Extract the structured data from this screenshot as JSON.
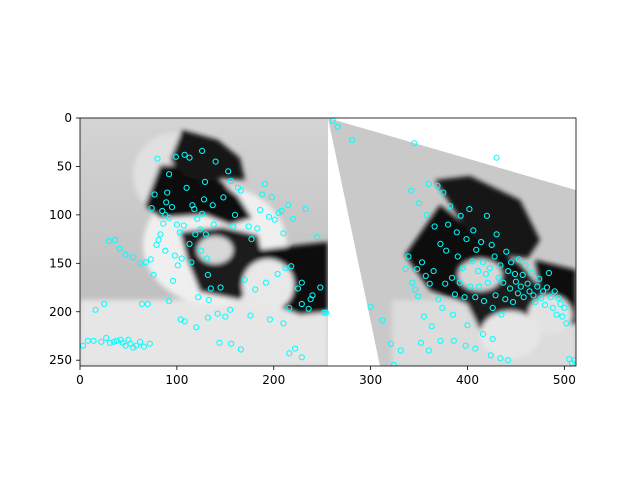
{
  "chart_data": {
    "type": "scatter",
    "title": "",
    "xlabel": "",
    "ylabel": "",
    "xlim": [
      0,
      512
    ],
    "ylim": [
      256,
      0
    ],
    "x_ticks": [
      0,
      100,
      200,
      300,
      400,
      500
    ],
    "y_ticks": [
      0,
      50,
      100,
      150,
      200,
      250
    ],
    "grid": false,
    "legend": "none",
    "marker_color": "#00ffff",
    "marker": "circle-open",
    "background_image": "two side-by-side grayscale kitten photos; right copy warped by a perspective transform",
    "series": [
      {
        "points": [
          [
            3,
            235
          ],
          [
            8,
            230
          ],
          [
            14,
            230
          ],
          [
            16,
            198
          ],
          [
            22,
            231
          ],
          [
            25,
            192
          ],
          [
            27,
            227
          ],
          [
            31,
            232
          ],
          [
            35,
            231
          ],
          [
            38,
            230
          ],
          [
            42,
            229
          ],
          [
            44,
            232
          ],
          [
            47,
            235
          ],
          [
            50,
            229
          ],
          [
            52,
            233
          ],
          [
            55,
            237
          ],
          [
            58,
            235
          ],
          [
            62,
            231
          ],
          [
            64,
            192
          ],
          [
            66,
            236
          ],
          [
            68,
            149
          ],
          [
            70,
            192
          ],
          [
            72,
            233
          ],
          [
            73,
            146
          ],
          [
            76,
            162
          ],
          [
            79,
            131
          ],
          [
            81,
            126
          ],
          [
            83,
            120
          ],
          [
            86,
            109
          ],
          [
            88,
            100
          ],
          [
            89,
            87
          ],
          [
            90,
            77
          ],
          [
            92,
            58
          ],
          [
            95,
            92
          ],
          [
            98,
            142
          ],
          [
            101,
            152
          ],
          [
            103,
            118
          ],
          [
            105,
            145
          ],
          [
            107,
            111
          ],
          [
            108,
            38
          ],
          [
            110,
            72
          ],
          [
            113,
            130
          ],
          [
            115,
            149
          ],
          [
            116,
            90
          ],
          [
            118,
            94
          ],
          [
            119,
            120
          ],
          [
            121,
            104
          ],
          [
            122,
            185
          ],
          [
            124,
            115
          ],
          [
            125,
            137
          ],
          [
            126,
            99
          ],
          [
            128,
            84
          ],
          [
            129,
            66
          ],
          [
            130,
            120
          ],
          [
            131,
            145
          ],
          [
            132,
            162
          ],
          [
            133,
            188
          ],
          [
            135,
            176
          ],
          [
            137,
            90
          ],
          [
            138,
            110
          ],
          [
            140,
            45
          ],
          [
            142,
            202
          ],
          [
            145,
            175
          ],
          [
            148,
            82
          ],
          [
            150,
            205
          ],
          [
            153,
            55
          ],
          [
            156,
            65
          ],
          [
            158,
            112
          ],
          [
            160,
            100
          ],
          [
            163,
            72
          ],
          [
            166,
            75
          ],
          [
            170,
            167
          ],
          [
            174,
            112
          ],
          [
            177,
            125
          ],
          [
            181,
            177
          ],
          [
            183,
            114
          ],
          [
            186,
            95
          ],
          [
            188,
            79
          ],
          [
            191,
            68
          ],
          [
            192,
            170
          ],
          [
            195,
            102
          ],
          [
            198,
            82
          ],
          [
            201,
            105
          ],
          [
            204,
            161
          ],
          [
            205,
            98
          ],
          [
            208,
            96
          ],
          [
            210,
            119
          ],
          [
            212,
            155
          ],
          [
            215,
            90
          ],
          [
            218,
            153
          ],
          [
            220,
            104
          ],
          [
            225,
            176
          ],
          [
            229,
            170
          ],
          [
            233,
            94
          ],
          [
            236,
            197
          ],
          [
            240,
            183
          ],
          [
            245,
            123
          ],
          [
            248,
            175
          ],
          [
            252,
            201
          ],
          [
            254,
            201
          ],
          [
            92,
            189
          ],
          [
            104,
            208
          ],
          [
            108,
            210
          ],
          [
            120,
            216
          ],
          [
            132,
            206
          ],
          [
            155,
            198
          ],
          [
            176,
            204
          ],
          [
            196,
            208
          ],
          [
            210,
            212
          ],
          [
            216,
            243
          ],
          [
            222,
            238
          ],
          [
            229,
            247
          ],
          [
            216,
            196
          ],
          [
            229,
            192
          ],
          [
            238,
            187
          ],
          [
            144,
            232
          ],
          [
            156,
            233
          ],
          [
            166,
            239
          ],
          [
            88,
            137
          ],
          [
            96,
            168
          ],
          [
            41,
            135
          ],
          [
            47,
            141
          ],
          [
            55,
            144
          ],
          [
            62,
            150
          ],
          [
            36,
            126
          ],
          [
            30,
            127
          ],
          [
            126,
            34
          ],
          [
            113,
            41
          ],
          [
            99,
            40
          ],
          [
            80,
            42
          ],
          [
            77,
            79
          ],
          [
            85,
            96
          ],
          [
            92,
            103
          ],
          [
            100,
            110
          ],
          [
            74,
            93
          ]
        ]
      },
      {
        "points": [
          [
            261,
            3
          ],
          [
            266,
            9
          ],
          [
            281,
            23
          ],
          [
            300,
            195
          ],
          [
            312,
            209
          ],
          [
            321,
            233
          ],
          [
            324,
            255
          ],
          [
            331,
            240
          ],
          [
            336,
            156
          ],
          [
            339,
            143
          ],
          [
            342,
            75
          ],
          [
            343,
            170
          ],
          [
            346,
            177
          ],
          [
            348,
            156
          ],
          [
            349,
            184
          ],
          [
            350,
            88
          ],
          [
            353,
            149
          ],
          [
            355,
            205
          ],
          [
            357,
            163
          ],
          [
            358,
            100
          ],
          [
            360,
            68
          ],
          [
            361,
            171
          ],
          [
            363,
            215
          ],
          [
            365,
            158
          ],
          [
            366,
            112
          ],
          [
            369,
            70
          ],
          [
            370,
            187
          ],
          [
            372,
            130
          ],
          [
            374,
            196
          ],
          [
            375,
            77
          ],
          [
            377,
            171
          ],
          [
            378,
            137
          ],
          [
            380,
            110
          ],
          [
            382,
            91
          ],
          [
            384,
            165
          ],
          [
            385,
            203
          ],
          [
            387,
            182
          ],
          [
            389,
            118
          ],
          [
            390,
            143
          ],
          [
            392,
            170
          ],
          [
            393,
            101
          ],
          [
            395,
            155
          ],
          [
            397,
            185
          ],
          [
            399,
            125
          ],
          [
            400,
            214
          ],
          [
            402,
            94
          ],
          [
            403,
            174
          ],
          [
            405,
            148
          ],
          [
            406,
            116
          ],
          [
            408,
            185
          ],
          [
            409,
            136
          ],
          [
            411,
            158
          ],
          [
            412,
            174
          ],
          [
            414,
            128
          ],
          [
            416,
            149
          ],
          [
            417,
            189
          ],
          [
            419,
            161
          ],
          [
            420,
            101
          ],
          [
            421,
            170
          ],
          [
            423,
            155
          ],
          [
            425,
            131
          ],
          [
            426,
            196
          ],
          [
            428,
            143
          ],
          [
            429,
            183
          ],
          [
            430,
            120
          ],
          [
            432,
            165
          ],
          [
            434,
            152
          ],
          [
            435,
            203
          ],
          [
            437,
            170
          ],
          [
            439,
            187
          ],
          [
            440,
            138
          ],
          [
            442,
            158
          ],
          [
            444,
            176
          ],
          [
            445,
            149
          ],
          [
            447,
            190
          ],
          [
            449,
            161
          ],
          [
            450,
            169
          ],
          [
            452,
            181
          ],
          [
            453,
            146
          ],
          [
            455,
            174
          ],
          [
            457,
            162
          ],
          [
            458,
            185
          ],
          [
            460,
            152
          ],
          [
            462,
            171
          ],
          [
            464,
            179
          ],
          [
            466,
            160
          ],
          [
            468,
            183
          ],
          [
            470,
            190
          ],
          [
            472,
            174
          ],
          [
            474,
            166
          ],
          [
            476,
            186
          ],
          [
            478,
            179
          ],
          [
            480,
            193
          ],
          [
            482,
            175
          ],
          [
            484,
            160
          ],
          [
            486,
            185
          ],
          [
            488,
            196
          ],
          [
            490,
            179
          ],
          [
            492,
            203
          ],
          [
            494,
            186
          ],
          [
            496,
            192
          ],
          [
            498,
            205
          ],
          [
            500,
            196
          ],
          [
            502,
            212
          ],
          [
            505,
            249
          ],
          [
            508,
            253
          ],
          [
            510,
            250
          ],
          [
            345,
            26
          ],
          [
            430,
            41
          ],
          [
            352,
            232
          ],
          [
            360,
            240
          ],
          [
            372,
            230
          ],
          [
            386,
            230
          ],
          [
            398,
            235
          ],
          [
            408,
            238
          ],
          [
            416,
            223
          ],
          [
            424,
            245
          ],
          [
            434,
            248
          ],
          [
            442,
            250
          ],
          [
            426,
            228
          ]
        ]
      }
    ]
  }
}
